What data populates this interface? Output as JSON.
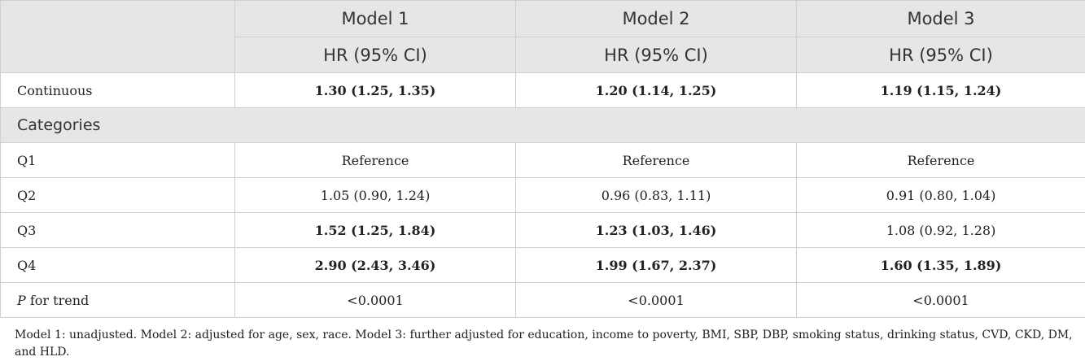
{
  "header": {
    "models": [
      "Model 1",
      "Model 2",
      "Model 3"
    ],
    "subheader": "HR (95% CI)"
  },
  "rows": {
    "continuous": {
      "label": "Continuous",
      "values": [
        "1.30 (1.25, 1.35)",
        "1.20 (1.14, 1.25)",
        "1.19 (1.15, 1.24)"
      ],
      "bold": [
        true,
        true,
        true
      ]
    },
    "categories_label": "Categories",
    "q1": {
      "label": "Q1",
      "values": [
        "Reference",
        "Reference",
        "Reference"
      ]
    },
    "q2": {
      "label": "Q2",
      "values": [
        "1.05 (0.90, 1.24)",
        "0.96 (0.83, 1.11)",
        "0.91 (0.80, 1.04)"
      ]
    },
    "q3": {
      "label": "Q3",
      "values": [
        "1.52 (1.25, 1.84)",
        "1.23 (1.03, 1.46)",
        "1.08 (0.92, 1.28)"
      ],
      "bold": [
        true,
        true,
        false
      ]
    },
    "q4": {
      "label": "Q4",
      "values": [
        "2.90 (2.43, 3.46)",
        "1.99 (1.67, 2.37)",
        "1.60 (1.35, 1.89)"
      ],
      "bold": [
        true,
        true,
        true
      ]
    },
    "ptrend": {
      "label_italic": "P",
      "label_rest": " for trend",
      "values": [
        "<0.0001",
        "<0.0001",
        "<0.0001"
      ]
    }
  },
  "footnote": "Model 1: unadjusted. Model 2: adjusted for age, sex, race. Model 3: further adjusted for education, income to poverty, BMI, SBP, DBP, smoking status, drinking status, CVD, CKD, DM, and HLD."
}
